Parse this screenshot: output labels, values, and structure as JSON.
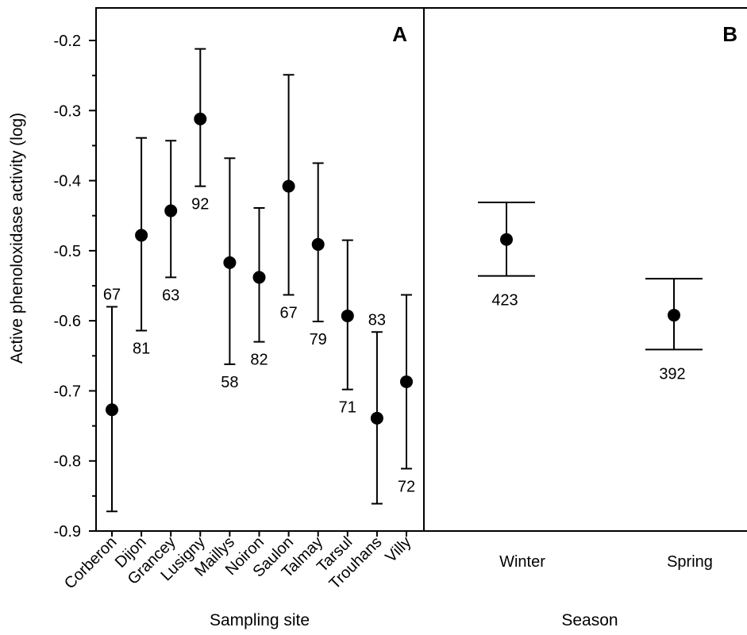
{
  "chart_data": [
    {
      "type": "scatter",
      "panel_label": "A",
      "ylabel": "Active phenoloxidase activity (log)",
      "xlabel": "Sampling site",
      "ylim": [
        -0.9,
        -0.2
      ],
      "yticks": [
        "-0.9",
        "-0.8",
        "-0.7",
        "-0.6",
        "-0.5",
        "-0.4",
        "-0.3",
        "-0.2"
      ],
      "grid": false,
      "categories": [
        "Corberon",
        "Dijon",
        "Grancey",
        "Lusigny",
        "Maillys",
        "Noiron",
        "Saulon",
        "Talmay",
        "Tarsul",
        "Trouhans",
        "Villy"
      ],
      "series": [
        {
          "mean": [
            -0.727,
            -0.478,
            -0.443,
            -0.312,
            -0.517,
            -0.538,
            -0.408,
            -0.491,
            -0.593,
            -0.739,
            -0.687
          ],
          "lower": [
            -0.872,
            -0.614,
            -0.538,
            -0.408,
            -0.662,
            -0.63,
            -0.563,
            -0.601,
            -0.698,
            -0.861,
            -0.811
          ],
          "upper": [
            -0.58,
            -0.339,
            -0.343,
            -0.212,
            -0.368,
            -0.439,
            -0.249,
            -0.375,
            -0.485,
            -0.616,
            -0.563
          ],
          "n": [
            "67",
            "81",
            "63",
            "92",
            "58",
            "82",
            "67",
            "79",
            "71",
            "83",
            "72"
          ]
        }
      ]
    },
    {
      "type": "scatter",
      "panel_label": "B",
      "xlabel": "Season",
      "ylim": [
        -0.9,
        -0.2
      ],
      "categories": [
        "Winter",
        "Spring"
      ],
      "series": [
        {
          "mean": [
            -0.484,
            -0.592
          ],
          "lower": [
            -0.536,
            -0.641
          ],
          "upper": [
            -0.431,
            -0.54
          ],
          "n": [
            "423",
            "392"
          ]
        }
      ]
    }
  ]
}
